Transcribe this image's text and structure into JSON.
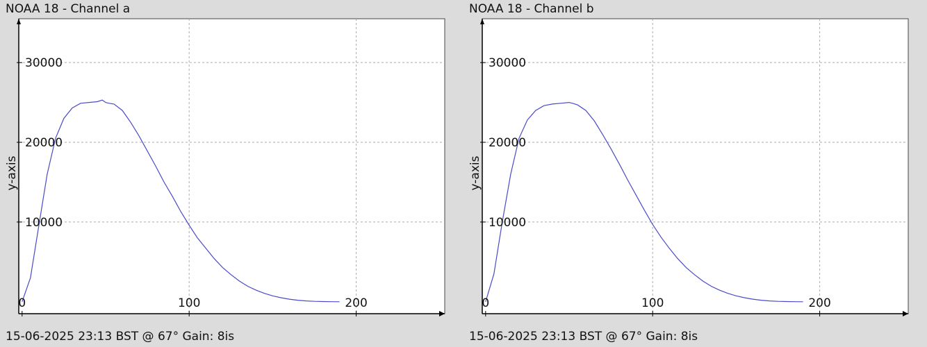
{
  "chart_data": [
    {
      "type": "line",
      "title": "NOAA 18 - Channel a",
      "footer": "15-06-2025 23:13 BST @ 67° Gain: 8is",
      "xlabel": "",
      "ylabel": "y-axis",
      "xlim": [
        -2,
        253
      ],
      "ylim": [
        -1500,
        35500
      ],
      "xticks": [
        0,
        100,
        200
      ],
      "yticks": [
        10000,
        20000,
        30000
      ],
      "grid": true,
      "series": [
        {
          "color": "#4a4ac8",
          "x": [
            0,
            5,
            10,
            15,
            20,
            25,
            30,
            35,
            40,
            45,
            48,
            50,
            52,
            55,
            60,
            65,
            70,
            75,
            80,
            85,
            90,
            95,
            100,
            105,
            110,
            115,
            120,
            125,
            130,
            135,
            140,
            145,
            150,
            155,
            160,
            165,
            170,
            175,
            180,
            185,
            190
          ],
          "y": [
            0,
            3000,
            9500,
            16000,
            20500,
            23000,
            24300,
            24900,
            25000,
            25100,
            25300,
            25000,
            24900,
            24800,
            24000,
            22500,
            20800,
            18900,
            17000,
            15000,
            13200,
            11300,
            9600,
            8000,
            6700,
            5400,
            4300,
            3400,
            2600,
            1950,
            1450,
            1050,
            740,
            500,
            320,
            190,
            100,
            50,
            20,
            10,
            0
          ]
        }
      ]
    },
    {
      "type": "line",
      "title": "NOAA 18 - Channel b",
      "footer": "15-06-2025 23:13 BST @ 67° Gain: 8is",
      "xlabel": "",
      "ylabel": "y-axis",
      "xlim": [
        -2,
        253
      ],
      "ylim": [
        -1500,
        35500
      ],
      "xticks": [
        0,
        100,
        200
      ],
      "yticks": [
        10000,
        20000,
        30000
      ],
      "grid": true,
      "series": [
        {
          "color": "#4a4ac8",
          "x": [
            0,
            5,
            10,
            15,
            20,
            25,
            30,
            35,
            40,
            45,
            50,
            52,
            55,
            60,
            65,
            70,
            75,
            80,
            85,
            90,
            95,
            100,
            105,
            110,
            115,
            120,
            125,
            130,
            135,
            140,
            145,
            150,
            155,
            160,
            165,
            170,
            175,
            180,
            185,
            190
          ],
          "y": [
            0,
            3500,
            10000,
            16000,
            20500,
            22800,
            24000,
            24600,
            24800,
            24900,
            25000,
            24900,
            24700,
            24000,
            22700,
            21000,
            19200,
            17300,
            15300,
            13400,
            11500,
            9700,
            8100,
            6700,
            5400,
            4300,
            3400,
            2600,
            1950,
            1450,
            1050,
            740,
            500,
            320,
            190,
            100,
            50,
            20,
            10,
            0
          ]
        }
      ]
    }
  ]
}
